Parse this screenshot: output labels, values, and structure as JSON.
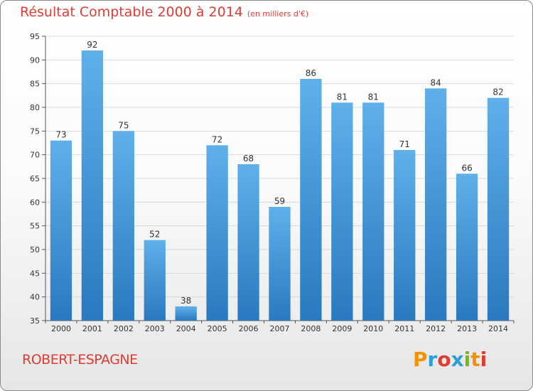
{
  "header": {
    "title": "Résultat Comptable 2000 à 2014",
    "subtitle": "(en milliers d'€)"
  },
  "footer": {
    "commune": "ROBERT-ESPAGNE",
    "logo_text": "Proxiti",
    "logo_colors": [
      "#f39200",
      "#2a9fd8",
      "#e03c31",
      "#2a9fd8",
      "#7ab51d",
      "#f39200",
      "#e03c31"
    ]
  },
  "chart_data": {
    "type": "bar",
    "title": "Résultat Comptable 2000 à 2014",
    "subtitle": "(en milliers d'€)",
    "xlabel": "",
    "ylabel": "",
    "ylim": [
      35,
      95
    ],
    "yticks": [
      35,
      40,
      45,
      50,
      55,
      60,
      65,
      70,
      75,
      80,
      85,
      90,
      95
    ],
    "grid": true,
    "bar_color": "#3c94d8",
    "categories": [
      "2000",
      "2001",
      "2002",
      "2003",
      "2004",
      "2005",
      "2006",
      "2007",
      "2008",
      "2009",
      "2010",
      "2011",
      "2012",
      "2013",
      "2014"
    ],
    "values": [
      73,
      92,
      75,
      52,
      38,
      72,
      68,
      59,
      86,
      81,
      81,
      71,
      84,
      66,
      82
    ]
  }
}
